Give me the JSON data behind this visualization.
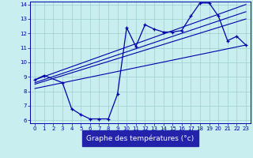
{
  "xlabel": "Graphe des températures (°c)",
  "bg_color": "#c8eef0",
  "grid_color": "#9ecfcf",
  "line_color": "#0000aa",
  "xlabel_bg": "#2222aa",
  "xlim": [
    -0.5,
    23.5
  ],
  "ylim": [
    5.8,
    14.2
  ],
  "xticks": [
    0,
    1,
    2,
    3,
    4,
    5,
    6,
    7,
    8,
    9,
    10,
    11,
    12,
    13,
    14,
    15,
    16,
    17,
    18,
    19,
    20,
    21,
    22,
    23
  ],
  "yticks": [
    6,
    7,
    8,
    9,
    10,
    11,
    12,
    13,
    14
  ],
  "series_temp": {
    "x": [
      0,
      1,
      3,
      4,
      5,
      6,
      7,
      8,
      9,
      10,
      11,
      12,
      13,
      14,
      15,
      16,
      17,
      18,
      19,
      20,
      21,
      22,
      23
    ],
    "y": [
      8.8,
      9.1,
      8.6,
      6.8,
      6.4,
      6.1,
      6.1,
      6.1,
      7.8,
      12.4,
      11.1,
      12.6,
      12.3,
      12.1,
      12.1,
      12.2,
      13.2,
      14.1,
      14.1,
      13.2,
      11.5,
      11.8,
      11.2
    ]
  },
  "line1": {
    "x": [
      0,
      23
    ],
    "y": [
      8.8,
      14.0
    ]
  },
  "line2": {
    "x": [
      0,
      23
    ],
    "y": [
      8.6,
      13.5
    ]
  },
  "line3": {
    "x": [
      0,
      23
    ],
    "y": [
      8.5,
      13.0
    ]
  },
  "line4": {
    "x": [
      0,
      23
    ],
    "y": [
      8.2,
      11.2
    ]
  }
}
